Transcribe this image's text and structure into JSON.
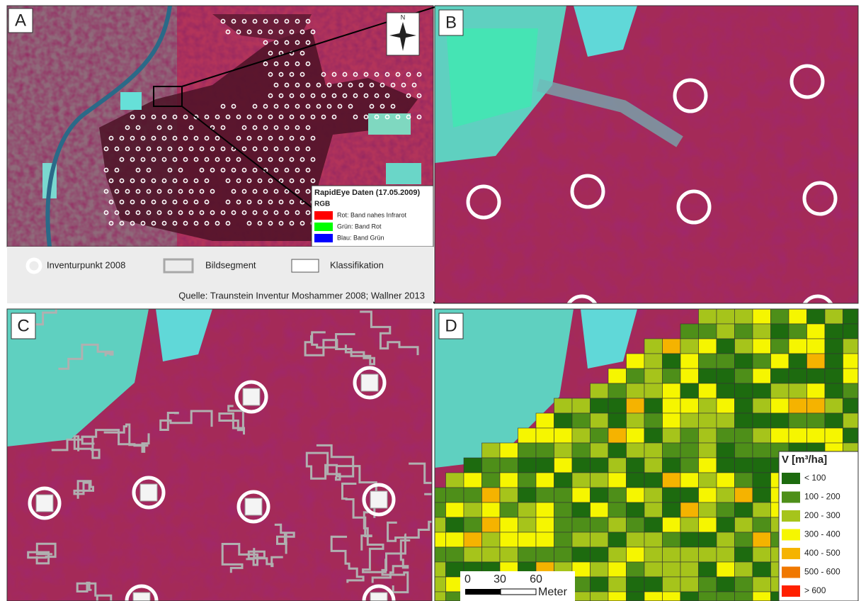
{
  "panels": [
    {
      "label": "A"
    },
    {
      "label": "B"
    },
    {
      "label": "C"
    },
    {
      "label": "D"
    }
  ],
  "north_arrow": {
    "label": "N"
  },
  "rapideye_legend": {
    "title": "RapidEye Daten (17.05.2009)",
    "subtitle": "RGB",
    "items": [
      {
        "label": "Rot: Band nahes Infrarot",
        "color": "#ff0000"
      },
      {
        "label": "Grün: Band Rot",
        "color": "#00ff00"
      },
      {
        "label": "Blau: Band Grün",
        "color": "#0000ff"
      }
    ]
  },
  "legend": {
    "items": [
      {
        "label": "Inventurpunkt 2008"
      },
      {
        "label": "Bildsegment"
      },
      {
        "label": "Klassifikation"
      }
    ],
    "source": "Quelle: Traunstein Inventur Moshammer 2008; Wallner 2013"
  },
  "volume_legend": {
    "title": "V [m³/ha]",
    "classes": [
      {
        "label": "< 100",
        "color": "#1d6b0f"
      },
      {
        "label": "100 - 200",
        "color": "#4e8f19"
      },
      {
        "label": "200 - 300",
        "color": "#a6c41b"
      },
      {
        "label": "300 - 400",
        "color": "#f6f600"
      },
      {
        "label": "400 - 500",
        "color": "#f5b300"
      },
      {
        "label": "500 - 600",
        "color": "#f07800"
      },
      {
        "label": "> 600",
        "color": "#ff2000"
      }
    ]
  },
  "scale_bar": {
    "labels": [
      "0",
      "30",
      "60"
    ],
    "unit": "Meter"
  }
}
